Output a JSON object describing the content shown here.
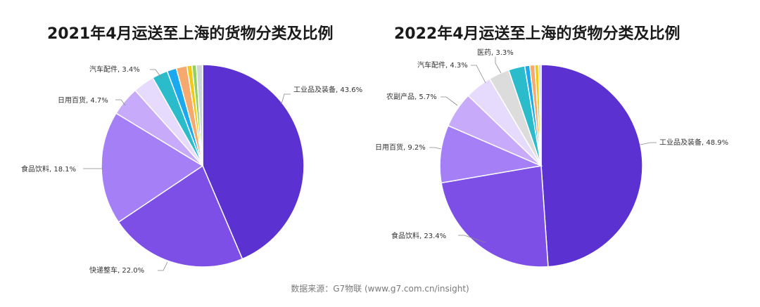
{
  "source": "数据来源：G7物联 (www.g7.com.cn/insight)",
  "chart_data": [
    {
      "type": "pie",
      "title": "2021年4月运送至上海的货物分类及比例",
      "slices": [
        {
          "label": "工业品及装备, 43.6%",
          "value": 43.6,
          "color": "#5b32d1"
        },
        {
          "label": "快递整车, 22.0%",
          "value": 22.0,
          "color": "#7d4fe6"
        },
        {
          "label": "食品饮料, 18.1%",
          "value": 18.1,
          "color": "#a57ff5"
        },
        {
          "label": "日用百货, 4.7%",
          "value": 4.7,
          "color": "#c7abfa"
        },
        {
          "label": "汽车配件, 3.4%",
          "value": 3.4,
          "color": "#e6dafd"
        },
        {
          "label": "",
          "value": 2.5,
          "color": "#2bbccc"
        },
        {
          "label": "",
          "value": 1.5,
          "color": "#1aa8ee"
        },
        {
          "label": "",
          "value": 1.7,
          "color": "#f5a96e"
        },
        {
          "label": "",
          "value": 0.8,
          "color": "#f2c811"
        },
        {
          "label": "",
          "value": 0.7,
          "color": "#8fd15c"
        },
        {
          "label": "",
          "value": 1.0,
          "color": "#cfd6d8"
        }
      ]
    },
    {
      "type": "pie",
      "title": "2022年4月运送至上海的货物分类及比例",
      "slices": [
        {
          "label": "工业品及装备, 48.9%",
          "value": 48.9,
          "color": "#5b32d1"
        },
        {
          "label": "食品饮料, 23.4%",
          "value": 23.4,
          "color": "#7d4fe6"
        },
        {
          "label": "日用百货, 9.2%",
          "value": 9.2,
          "color": "#a57ff5"
        },
        {
          "label": "农副产品, 5.7%",
          "value": 5.7,
          "color": "#c7abfa"
        },
        {
          "label": "汽车配件, 4.3%",
          "value": 4.3,
          "color": "#e6dafd"
        },
        {
          "label": "医药, 3.3%",
          "value": 3.3,
          "color": "#dcdcdc"
        },
        {
          "label": "",
          "value": 2.6,
          "color": "#2bbccc"
        },
        {
          "label": "",
          "value": 0.8,
          "color": "#1aa8ee"
        },
        {
          "label": "",
          "value": 0.8,
          "color": "#f5a96e"
        },
        {
          "label": "",
          "value": 0.6,
          "color": "#f2c811"
        },
        {
          "label": "",
          "value": 0.4,
          "color": "#cfd6d8"
        }
      ]
    }
  ]
}
